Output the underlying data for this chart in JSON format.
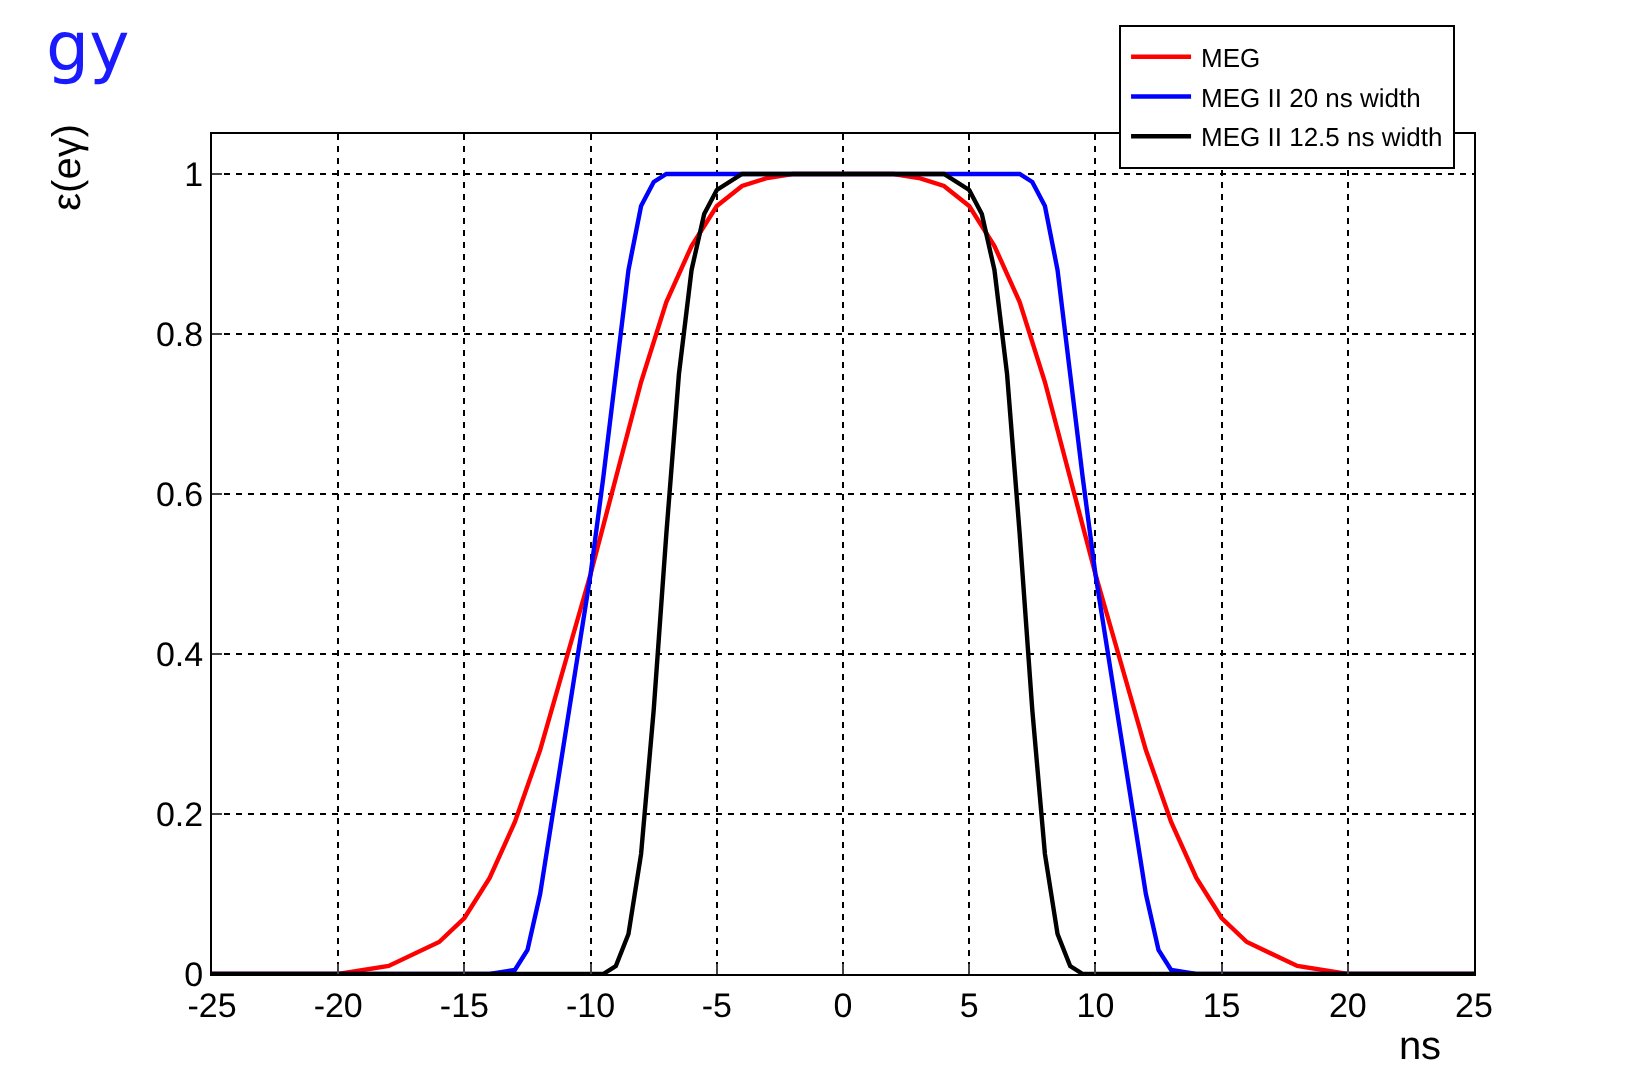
{
  "chart_data": {
    "type": "line",
    "xlabel": "ns",
    "ylabel": "ε(eγ)",
    "annotations": [
      "gy"
    ],
    "xlim": [
      -25,
      25
    ],
    "xticks": [
      -25,
      -20,
      -15,
      -10,
      -5,
      0,
      5,
      10,
      15,
      20,
      25
    ],
    "ylim": [
      0,
      1.05
    ],
    "yticks": [
      0,
      0.2,
      0.4,
      0.6,
      0.8,
      1
    ],
    "grid": true,
    "legend": "top right",
    "series": [
      {
        "name": "MEG",
        "color": "#ff0000",
        "x": [
          -25,
          -20,
          -18,
          -16,
          -15,
          -14,
          -13,
          -12,
          -11,
          -10,
          -9,
          -8,
          -7,
          -6,
          -5,
          -4,
          -3,
          -2,
          0,
          2,
          3,
          4,
          5,
          6,
          7,
          8,
          9,
          10,
          11,
          12,
          13,
          14,
          15,
          16,
          18,
          20,
          25
        ],
        "values": [
          0,
          0,
          0.01,
          0.04,
          0.07,
          0.12,
          0.19,
          0.28,
          0.39,
          0.5,
          0.62,
          0.74,
          0.84,
          0.91,
          0.96,
          0.985,
          0.995,
          1,
          1,
          1,
          0.995,
          0.985,
          0.96,
          0.91,
          0.84,
          0.74,
          0.62,
          0.5,
          0.39,
          0.28,
          0.19,
          0.12,
          0.07,
          0.04,
          0.01,
          0,
          0
        ]
      },
      {
        "name": "MEG II 20 ns width",
        "color": "#0000ff",
        "x": [
          -25,
          -14,
          -13,
          -12.5,
          -12,
          -11.5,
          -11,
          -10.5,
          -10,
          -9.5,
          -9,
          -8.5,
          -8,
          -7.5,
          -7,
          -6,
          0,
          6,
          7,
          7.5,
          8,
          8.5,
          9,
          9.5,
          10,
          10.5,
          11,
          11.5,
          12,
          12.5,
          13,
          14,
          25
        ],
        "values": [
          0,
          0,
          0.005,
          0.03,
          0.1,
          0.2,
          0.3,
          0.4,
          0.5,
          0.62,
          0.75,
          0.88,
          0.96,
          0.99,
          1,
          1,
          1,
          1,
          1,
          0.99,
          0.96,
          0.88,
          0.75,
          0.62,
          0.5,
          0.4,
          0.3,
          0.2,
          0.1,
          0.03,
          0.005,
          0,
          0
        ]
      },
      {
        "name": "MEG II 12.5 ns width",
        "color": "#000000",
        "x": [
          -25,
          -9.5,
          -9,
          -8.5,
          -8,
          -7.5,
          -7,
          -6.5,
          -6,
          -5.5,
          -5,
          -4,
          0,
          4,
          5,
          5.5,
          6,
          6.5,
          7,
          7.5,
          8,
          8.5,
          9,
          9.5,
          25
        ],
        "values": [
          0,
          0,
          0.01,
          0.05,
          0.15,
          0.33,
          0.55,
          0.75,
          0.88,
          0.95,
          0.98,
          1,
          1,
          1,
          0.98,
          0.95,
          0.88,
          0.75,
          0.55,
          0.33,
          0.15,
          0.05,
          0.01,
          0,
          0
        ]
      }
    ]
  }
}
